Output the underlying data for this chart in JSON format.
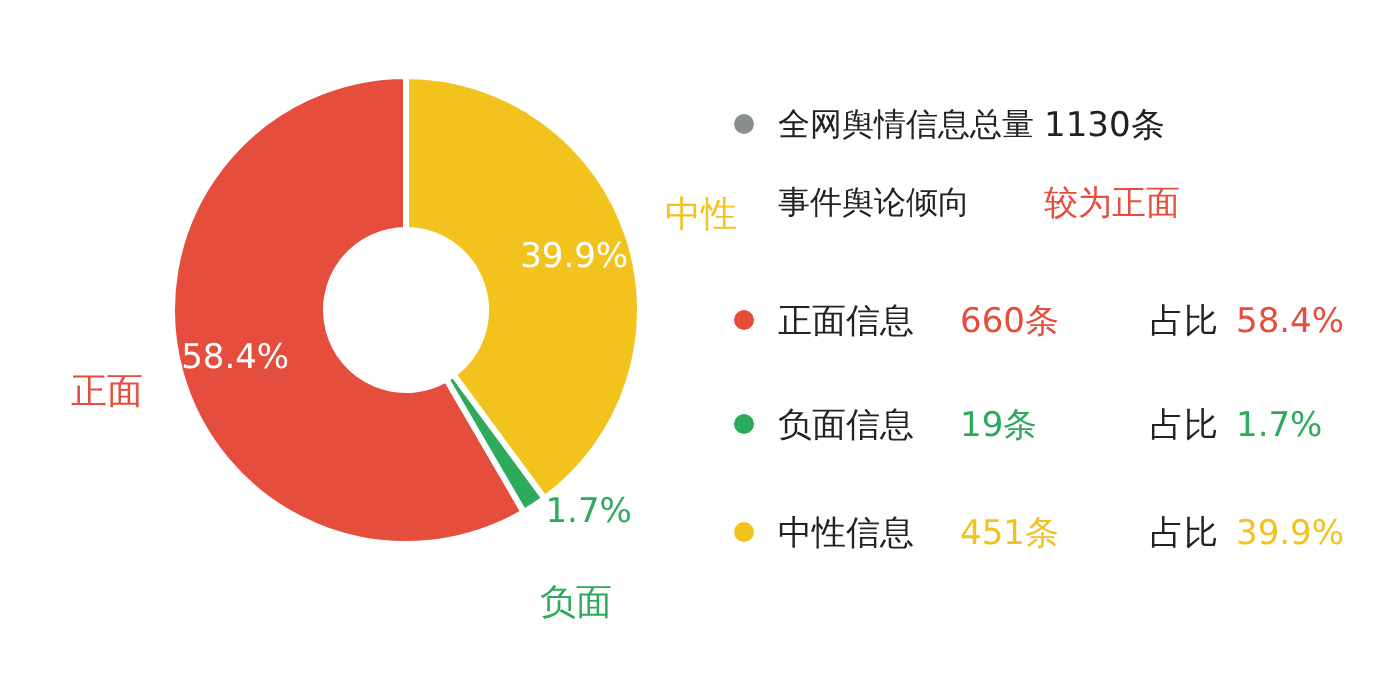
{
  "chart_data": {
    "type": "donut",
    "categories": [
      "正面",
      "负面",
      "中性"
    ],
    "values": [
      58.4,
      1.7,
      39.9
    ],
    "colors": [
      "#e54d3d",
      "#2eaa5c",
      "#f2c31c"
    ],
    "value_labels": [
      "58.4%",
      "1.7%",
      "39.9%"
    ],
    "annotations": [
      "全网舆情信息总量",
      "1130条",
      "事件舆论倾向",
      "较为正面",
      "正面信息",
      "660条",
      "占比",
      "58.4%",
      "负面信息",
      "19条",
      "占比",
      "1.7%",
      "中性信息",
      "451条",
      "占比",
      "39.9%"
    ]
  }
}
